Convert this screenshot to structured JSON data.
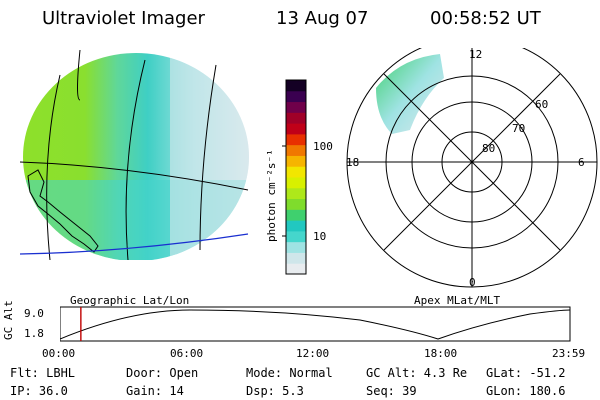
{
  "header": {
    "instrument": "Ultraviolet Imager",
    "date": "13 Aug 07",
    "time": "00:58:52 UT"
  },
  "colorbar": {
    "unit_label": "photon cm⁻²s⁻¹",
    "ticks": [
      "100",
      "10"
    ],
    "colors": [
      "#e8ecef",
      "#cfe6ea",
      "#9fe3e3",
      "#45d6cc",
      "#21c8c0",
      "#3fd06e",
      "#7fdc2c",
      "#aee81a",
      "#d8f000",
      "#f2e600",
      "#f6b400",
      "#f07800",
      "#e83000",
      "#c00018",
      "#a00028",
      "#70004a",
      "#3a0050",
      "#140024"
    ]
  },
  "left_map": {
    "caption": "Geographic Lat/Lon"
  },
  "right_map": {
    "caption": "Apex MLat/MLT",
    "lat_labels": [
      "60",
      "70",
      "80"
    ],
    "mlt_labels": [
      "12",
      "18",
      "6",
      "0"
    ]
  },
  "timeline": {
    "axis_label": "GC Alt",
    "y_ticks": [
      "9.0",
      "1.8"
    ],
    "x_ticks": [
      "00:00",
      "06:00",
      "12:00",
      "18:00",
      "23:59"
    ],
    "marker_time": "00:58:52",
    "marker_color": "#c00000"
  },
  "info": {
    "row1": [
      "Flt: LBHL",
      "Door: Open",
      "Mode: Normal",
      "GC Alt: 4.3 Re",
      "GLat: -51.2"
    ],
    "row2": [
      "IP: 36.0",
      "Gain: 14",
      "Dsp:    5.3",
      "Seq: 39",
      "GLon: 180.6"
    ]
  }
}
